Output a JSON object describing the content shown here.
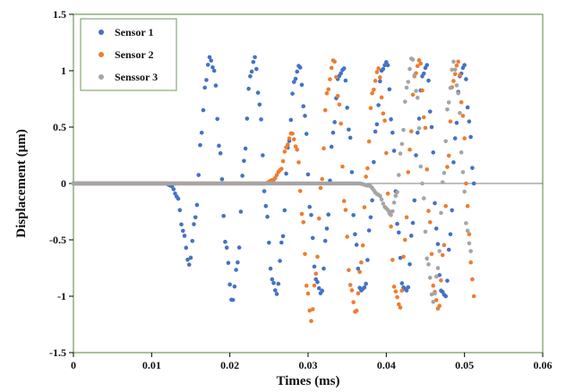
{
  "chart_data": {
    "type": "scatter",
    "title": "",
    "xlabel": "Times (ms)",
    "ylabel": "Displacement (μm)",
    "xlim": [
      0,
      0.06
    ],
    "ylim": [
      -1.5,
      1.5
    ],
    "x_ticks": [
      0,
      0.01,
      0.02,
      0.03,
      0.04,
      0.05,
      0.06
    ],
    "y_ticks": [
      -1.5,
      -1,
      -0.5,
      0,
      0.5,
      1,
      1.5
    ],
    "x_tick_labels": [
      "0",
      "0.01",
      "0.02",
      "0.03",
      "0.04",
      "0.05",
      "0.06"
    ],
    "y_tick_labels": [
      "-1.5",
      "-1",
      "-0.5",
      "0",
      "0.5",
      "1",
      "1.5"
    ],
    "grid": false,
    "legend_position": "top-left",
    "x_step": 0.0002,
    "series": [
      {
        "name": "Sensor 1",
        "color": "#4472C4",
        "points": [
          [
            0.0,
            0.0
          ],
          [
            0.0118,
            0.0
          ],
          [
            0.0125,
            -0.02
          ],
          [
            0.0133,
            -0.12
          ],
          [
            0.014,
            -0.42
          ],
          [
            0.0148,
            -0.72
          ],
          [
            0.0156,
            -0.3
          ],
          [
            0.0164,
            0.45
          ],
          [
            0.0168,
            0.85
          ],
          [
            0.0174,
            1.12
          ],
          [
            0.018,
            1.0
          ],
          [
            0.0187,
            0.3
          ],
          [
            0.0195,
            -0.55
          ],
          [
            0.0203,
            -1.05
          ],
          [
            0.021,
            -0.7
          ],
          [
            0.0218,
            0.2
          ],
          [
            0.0226,
            0.95
          ],
          [
            0.0232,
            1.12
          ],
          [
            0.0238,
            0.7
          ],
          [
            0.0246,
            -0.2
          ],
          [
            0.0254,
            -0.85
          ],
          [
            0.026,
            -0.98
          ],
          [
            0.0267,
            -0.5
          ],
          [
            0.0275,
            0.35
          ],
          [
            0.0282,
            0.9
          ],
          [
            0.0289,
            1.05
          ],
          [
            0.0296,
            0.6
          ],
          [
            0.0303,
            -0.25
          ],
          [
            0.031,
            -0.85
          ],
          [
            0.0317,
            -0.98
          ],
          [
            0.0324,
            -0.4
          ],
          [
            0.0332,
            0.45
          ],
          [
            0.0339,
            0.95
          ],
          [
            0.0346,
            1.02
          ],
          [
            0.0353,
            0.45
          ],
          [
            0.036,
            -0.45
          ],
          [
            0.0367,
            -0.95
          ],
          [
            0.0373,
            -0.92
          ],
          [
            0.038,
            -0.3
          ],
          [
            0.0387,
            0.5
          ],
          [
            0.0394,
            1.0
          ],
          [
            0.0401,
            1.08
          ],
          [
            0.0408,
            0.45
          ],
          [
            0.0415,
            -0.4
          ],
          [
            0.0421,
            -0.92
          ],
          [
            0.0427,
            -0.95
          ],
          [
            0.0434,
            -0.35
          ],
          [
            0.044,
            0.45
          ],
          [
            0.0446,
            0.95
          ],
          [
            0.0452,
            1.05
          ],
          [
            0.0458,
            0.5
          ],
          [
            0.0464,
            -0.4
          ],
          [
            0.047,
            -0.95
          ],
          [
            0.0476,
            -1.0
          ],
          [
            0.0482,
            -0.45
          ],
          [
            0.0488,
            0.4
          ],
          [
            0.0494,
            0.95
          ],
          [
            0.05,
            1.05
          ],
          [
            0.0506,
            0.55
          ],
          [
            0.0512,
            0.0
          ]
        ]
      },
      {
        "name": "Sensor 2",
        "color": "#ED7D31",
        "points": [
          [
            0.0,
            0.0
          ],
          [
            0.0245,
            0.0
          ],
          [
            0.0255,
            0.03
          ],
          [
            0.0265,
            0.12
          ],
          [
            0.0272,
            0.32
          ],
          [
            0.0279,
            0.45
          ],
          [
            0.0286,
            0.3
          ],
          [
            0.0293,
            -0.3
          ],
          [
            0.0299,
            -0.95
          ],
          [
            0.0304,
            -1.22
          ],
          [
            0.031,
            -0.8
          ],
          [
            0.0317,
            0.0
          ],
          [
            0.0324,
            0.8
          ],
          [
            0.0333,
            1.1
          ],
          [
            0.034,
            0.7
          ],
          [
            0.0347,
            -0.2
          ],
          [
            0.0354,
            -0.9
          ],
          [
            0.0361,
            -1.15
          ],
          [
            0.0368,
            -0.7
          ],
          [
            0.0375,
            0.1
          ],
          [
            0.0382,
            0.8
          ],
          [
            0.039,
            1.02
          ],
          [
            0.0397,
            0.6
          ],
          [
            0.0404,
            -0.25
          ],
          [
            0.0411,
            -0.95
          ],
          [
            0.0418,
            -1.1
          ],
          [
            0.0424,
            -0.5
          ],
          [
            0.043,
            0.3
          ],
          [
            0.0436,
            0.95
          ],
          [
            0.0443,
            1.1
          ],
          [
            0.0449,
            0.55
          ],
          [
            0.0455,
            -0.3
          ],
          [
            0.0461,
            -0.95
          ],
          [
            0.0467,
            -1.12
          ],
          [
            0.0473,
            -0.6
          ],
          [
            0.0479,
            0.2
          ],
          [
            0.0485,
            0.9
          ],
          [
            0.0492,
            1.08
          ],
          [
            0.0498,
            0.6
          ],
          [
            0.0504,
            -0.2
          ],
          [
            0.0508,
            -0.7
          ],
          [
            0.0512,
            -1.0
          ]
        ]
      },
      {
        "name": "Senssor 3",
        "color": "#A5A5A5",
        "points": [
          [
            0.0,
            0.0
          ],
          [
            0.0365,
            0.0
          ],
          [
            0.0378,
            -0.02
          ],
          [
            0.039,
            -0.1
          ],
          [
            0.04,
            -0.22
          ],
          [
            0.0406,
            -0.28
          ],
          [
            0.0413,
            -0.1
          ],
          [
            0.042,
            0.35
          ],
          [
            0.0426,
            0.85
          ],
          [
            0.0433,
            1.12
          ],
          [
            0.0439,
            0.8
          ],
          [
            0.0446,
            0.0
          ],
          [
            0.0453,
            -0.7
          ],
          [
            0.046,
            -1.05
          ],
          [
            0.0466,
            -0.75
          ],
          [
            0.0473,
            0.05
          ],
          [
            0.0479,
            0.7
          ],
          [
            0.0486,
            1.08
          ],
          [
            0.0492,
            0.8
          ],
          [
            0.0498,
            0.1
          ],
          [
            0.0503,
            -0.4
          ],
          [
            0.0508,
            -0.6
          ]
        ]
      }
    ]
  }
}
